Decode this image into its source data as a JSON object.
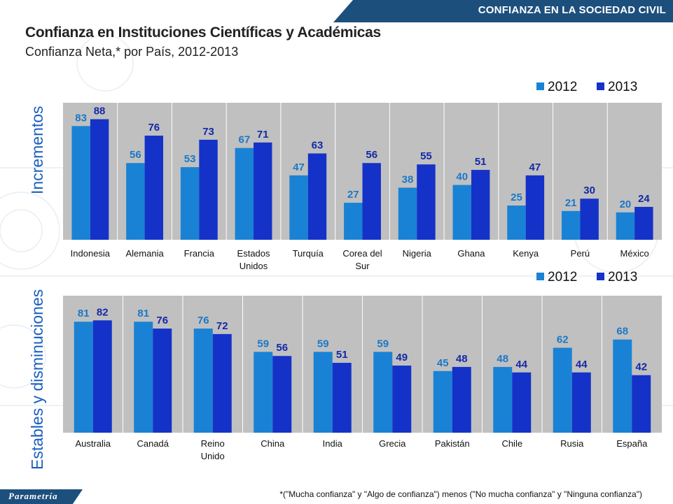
{
  "header": {
    "section": "CONFIANZA EN LA SOCIEDAD CIVIL"
  },
  "title": "Confianza en Instituciones Científicas y Académicas",
  "subtitle": "Confianza Neta,* por País, 2012-2013",
  "footnote": "*(\"Mucha confianza\" y \"Algo de confianza\") menos (\"No mucha confianza\" y \"Ninguna confianza\")",
  "logo": "Parametría",
  "colors": {
    "s2012": "#1a82d4",
    "s2013": "#1432c8",
    "plot_bg": "#c0c0c0",
    "label2012": "#1a78c8",
    "label2013": "#1428a8"
  },
  "chart_data": [
    {
      "type": "bar",
      "group_label": "Incrementos",
      "categories": [
        [
          "Indonesia"
        ],
        [
          "Alemania"
        ],
        [
          "Francia"
        ],
        [
          "Estados",
          "Unidos"
        ],
        [
          "Turquía"
        ],
        [
          "Corea del",
          "Sur"
        ],
        [
          "Nigeria"
        ],
        [
          "Ghana"
        ],
        [
          "Kenya"
        ],
        [
          "Perú"
        ],
        [
          "México"
        ]
      ],
      "series": [
        {
          "name": "2012",
          "values": [
            83,
            56,
            53,
            67,
            47,
            27,
            38,
            40,
            25,
            21,
            20
          ]
        },
        {
          "name": "2013",
          "values": [
            88,
            76,
            73,
            71,
            63,
            56,
            55,
            51,
            47,
            30,
            24
          ]
        }
      ],
      "legend": "top-right"
    },
    {
      "type": "bar",
      "group_label": "Estables y disminuciones",
      "categories": [
        [
          "Australia"
        ],
        [
          "Canadá"
        ],
        [
          "Reino",
          "Unido"
        ],
        [
          "China"
        ],
        [
          "India"
        ],
        [
          "Grecia"
        ],
        [
          "Pakistán"
        ],
        [
          "Chile"
        ],
        [
          "Rusia"
        ],
        [
          "España"
        ]
      ],
      "series": [
        {
          "name": "2012",
          "values": [
            81,
            81,
            76,
            59,
            59,
            59,
            45,
            48,
            62,
            68
          ]
        },
        {
          "name": "2013",
          "values": [
            82,
            76,
            72,
            56,
            51,
            49,
            48,
            44,
            44,
            42
          ]
        }
      ],
      "legend": "top-right"
    }
  ]
}
